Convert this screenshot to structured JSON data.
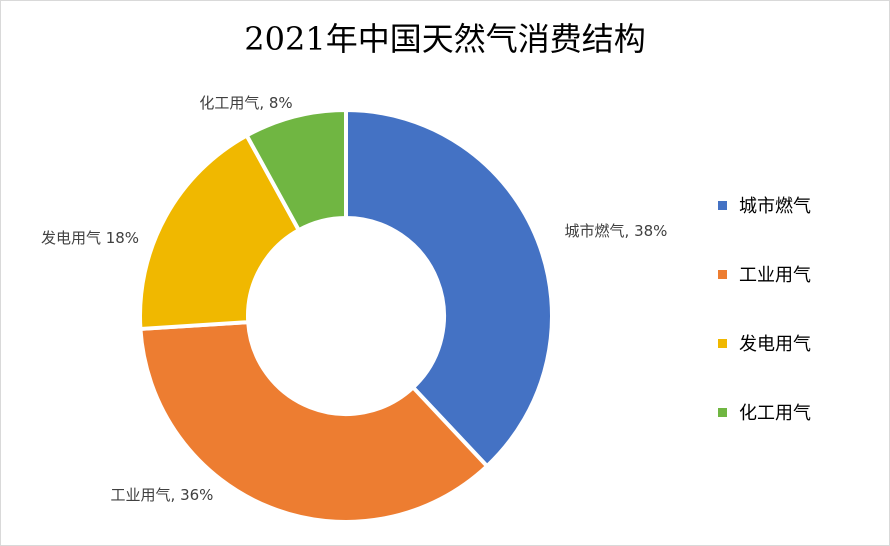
{
  "chart_data": {
    "type": "pie",
    "title": "2021年中国天然气消费结构",
    "categories": [
      "城市燃气",
      "工业用气",
      "发电用气",
      "化工用气"
    ],
    "values": [
      38,
      36,
      18,
      8
    ],
    "unit": "%",
    "data_labels": [
      "城市燃气, 38%",
      "工业用气, 36%",
      "发电用气 18%",
      "化工用气, 8%"
    ],
    "colors": [
      "#4472c4",
      "#ed7d31",
      "#f0b800",
      "#70b642"
    ],
    "legend_position": "right",
    "donut": true
  }
}
